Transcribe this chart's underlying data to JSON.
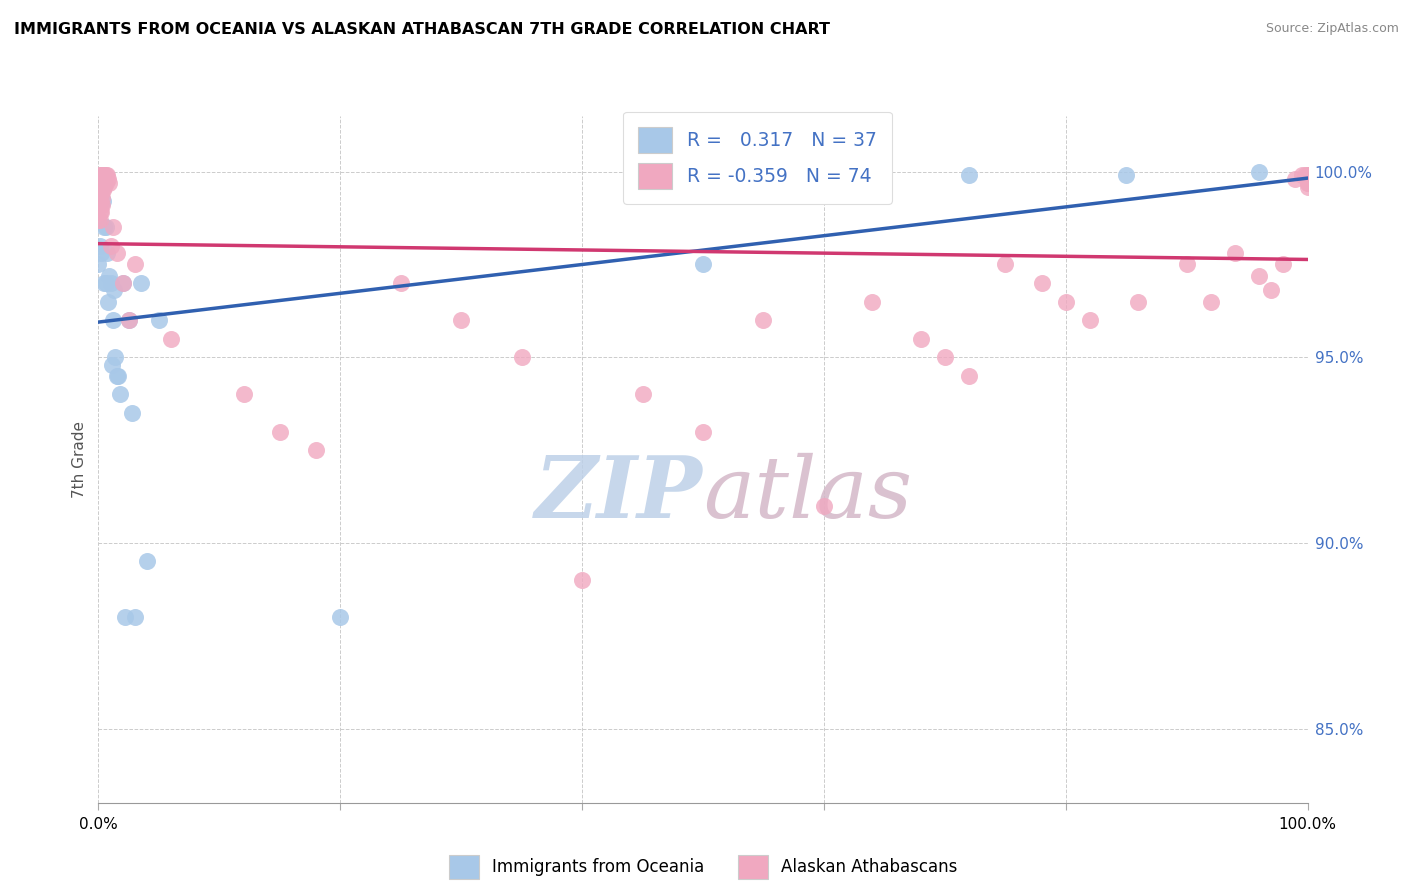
{
  "title": "IMMIGRANTS FROM OCEANIA VS ALASKAN ATHABASCAN 7TH GRADE CORRELATION CHART",
  "source": "Source: ZipAtlas.com",
  "ylabel": "7th Grade",
  "blue_color": "#a8c8e8",
  "pink_color": "#f0a8c0",
  "trend_blue": "#3060b0",
  "trend_pink": "#d03870",
  "right_tick_color": "#4472c4",
  "watermark_zip_color": "#c0d4ec",
  "watermark_atlas_color": "#c8a0b8",
  "r1": "0.317",
  "n1": "37",
  "r2": "-0.359",
  "n2": "74",
  "legend1_label": "Immigrants from Oceania",
  "legend2_label": "Alaskan Athabascans",
  "blue_x": [
    0.0,
    0.1,
    0.2,
    0.3,
    0.3,
    0.4,
    0.4,
    0.5,
    0.5,
    0.5,
    0.6,
    0.6,
    0.7,
    0.8,
    0.9,
    1.0,
    1.1,
    1.2,
    1.3,
    1.4,
    1.5,
    1.6,
    1.8,
    2.0,
    2.2,
    2.5,
    2.8,
    3.0,
    3.5,
    4.0,
    5.0,
    20.0,
    50.0,
    63.0,
    72.0,
    85.0,
    96.0
  ],
  "blue_y": [
    97.5,
    98.0,
    97.8,
    99.8,
    99.6,
    99.2,
    99.9,
    99.7,
    97.0,
    98.5,
    97.0,
    98.5,
    97.8,
    96.5,
    97.2,
    97.0,
    94.8,
    96.0,
    96.8,
    95.0,
    94.5,
    94.5,
    94.0,
    97.0,
    88.0,
    96.0,
    93.5,
    88.0,
    97.0,
    89.5,
    96.0,
    88.0,
    97.5,
    99.8,
    99.9,
    99.9,
    100.0
  ],
  "pink_x": [
    0.0,
    0.0,
    0.1,
    0.1,
    0.2,
    0.2,
    0.3,
    0.3,
    0.4,
    0.4,
    0.5,
    0.5,
    0.6,
    0.6,
    0.7,
    0.8,
    0.9,
    1.0,
    1.2,
    1.5,
    2.0,
    2.5,
    3.0,
    6.0,
    12.0,
    15.0,
    18.0,
    25.0,
    30.0,
    35.0,
    40.0,
    45.0,
    50.0,
    55.0,
    60.0,
    64.0,
    68.0,
    70.0,
    72.0,
    75.0,
    78.0,
    80.0,
    82.0,
    86.0,
    90.0,
    92.0,
    94.0,
    96.0,
    97.0,
    98.0,
    99.0,
    99.5,
    99.8,
    100.0,
    100.0,
    100.0,
    100.0,
    100.0,
    100.0,
    100.0,
    100.0,
    100.0,
    100.0,
    100.0,
    0.2,
    0.1,
    0.3,
    0.2,
    0.1,
    0.4,
    0.3,
    0.2,
    0.1,
    0.0
  ],
  "pink_y": [
    99.8,
    99.6,
    99.9,
    99.7,
    99.9,
    99.8,
    99.9,
    99.7,
    99.9,
    99.7,
    99.9,
    99.6,
    99.9,
    99.7,
    99.9,
    99.8,
    99.7,
    98.0,
    98.5,
    97.8,
    97.0,
    96.0,
    97.5,
    95.5,
    94.0,
    93.0,
    92.5,
    97.0,
    96.0,
    95.0,
    89.0,
    94.0,
    93.0,
    96.0,
    91.0,
    96.5,
    95.5,
    95.0,
    94.5,
    97.5,
    97.0,
    96.5,
    96.0,
    96.5,
    97.5,
    96.5,
    97.8,
    97.2,
    96.8,
    97.5,
    99.8,
    99.9,
    99.9,
    99.8,
    99.9,
    99.8,
    99.7,
    99.9,
    99.8,
    99.7,
    99.9,
    99.8,
    99.7,
    99.6,
    99.4,
    99.2,
    99.1,
    98.9,
    98.7,
    99.5,
    99.3,
    99.1,
    98.9,
    98.7
  ],
  "xlim": [
    0.0,
    100.0
  ],
  "ylim": [
    83.0,
    101.5
  ],
  "yticks": [
    85.0,
    90.0,
    95.0,
    100.0
  ],
  "xticks": [
    0.0,
    20.0,
    40.0,
    60.0,
    80.0,
    100.0
  ]
}
